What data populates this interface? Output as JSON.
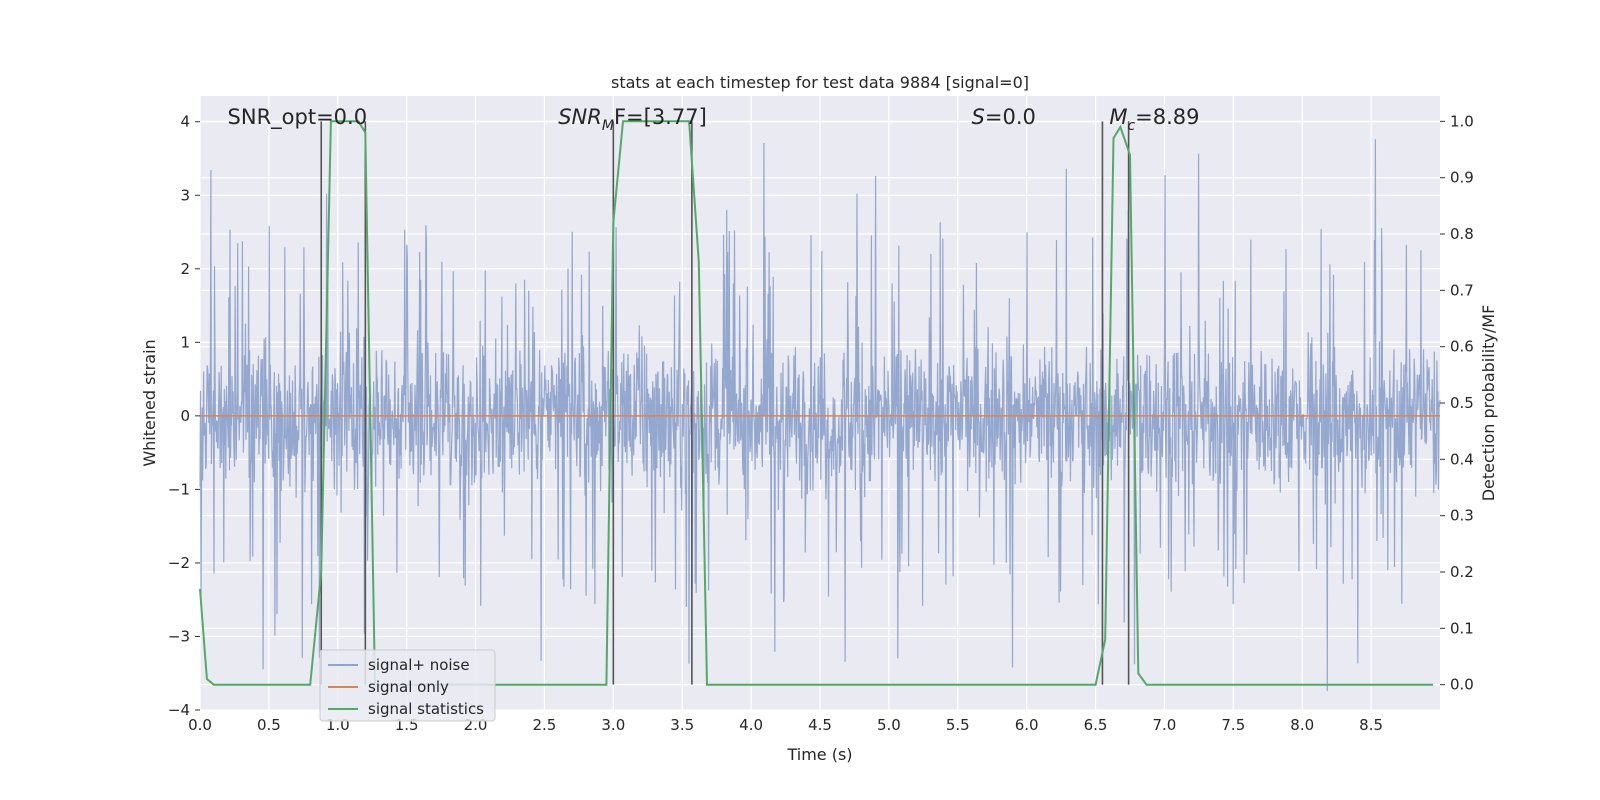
{
  "chart_data": {
    "type": "line",
    "title": "stats at each timestep for test data 9884 [signal=0]",
    "xlabel": "Time (s)",
    "ylabel": "Whitened strain",
    "y2label": "Detection probability/MF",
    "xlim": [
      0.0,
      9.0
    ],
    "ylim": [
      -4.0,
      4.35
    ],
    "y2lim": [
      -0.045,
      1.045
    ],
    "xticks": [
      "0.0",
      "0.5",
      "1.0",
      "1.5",
      "2.0",
      "2.5",
      "3.0",
      "3.5",
      "4.0",
      "4.5",
      "5.0",
      "5.5",
      "6.0",
      "6.5",
      "7.0",
      "7.5",
      "8.0",
      "8.5"
    ],
    "yticks": [
      "4",
      "3",
      "2",
      "1",
      "0",
      "−1",
      "−2",
      "−3",
      "−4"
    ],
    "y2ticks": [
      "1.0",
      "0.9",
      "0.8",
      "0.7",
      "0.6",
      "0.5",
      "0.4",
      "0.3",
      "0.2",
      "0.1",
      "0.0"
    ],
    "grid": true,
    "legend_position": "lower-left",
    "series": [
      {
        "name": "signal+ noise",
        "color": "#8fa3cc",
        "kind": "noise",
        "sample_count": 2400,
        "envelope": {
          "typical_range": [
            -1.4,
            1.2
          ],
          "peak_max": 3.9,
          "peak_min": -3.8
        }
      },
      {
        "name": "signal only",
        "color": "#dd8452",
        "x": [
          0.0,
          9.0
        ],
        "y": [
          0.0,
          0.0
        ]
      },
      {
        "name": "signal statistics",
        "color": "#55a868",
        "axis": "right",
        "x": [
          0.0,
          0.05,
          0.1,
          0.8,
          0.88,
          0.95,
          1.15,
          1.2,
          1.27,
          2.95,
          3.0,
          3.07,
          3.55,
          3.62,
          3.68,
          6.5,
          6.57,
          6.63,
          6.68,
          6.75,
          6.81,
          6.87,
          8.95
        ],
        "y": [
          0.17,
          0.01,
          0.0,
          0.0,
          0.2,
          1.0,
          1.0,
          0.98,
          0.0,
          0.0,
          0.82,
          1.0,
          1.0,
          0.75,
          0.0,
          0.0,
          0.08,
          0.97,
          0.99,
          0.94,
          0.02,
          0.0,
          0.0
        ]
      }
    ],
    "vertical_lines_x": [
      0.88,
      1.2,
      3.0,
      3.57,
      6.55,
      6.74
    ],
    "annotations": [
      {
        "text": "SNR_opt=0.0",
        "x": 0.2
      },
      {
        "text": "SNR",
        "sub": "M",
        "suffix": "F=[3.77]",
        "italic": true,
        "x": 2.6
      },
      {
        "text": "S",
        "suffix": "=0.0",
        "italic": true,
        "x": 5.6
      },
      {
        "text": "M",
        "sub": "c",
        "suffix": "=8.89",
        "italic": true,
        "x": 6.6
      }
    ],
    "legend": [
      "signal+ noise",
      "signal only",
      "signal statistics"
    ]
  }
}
